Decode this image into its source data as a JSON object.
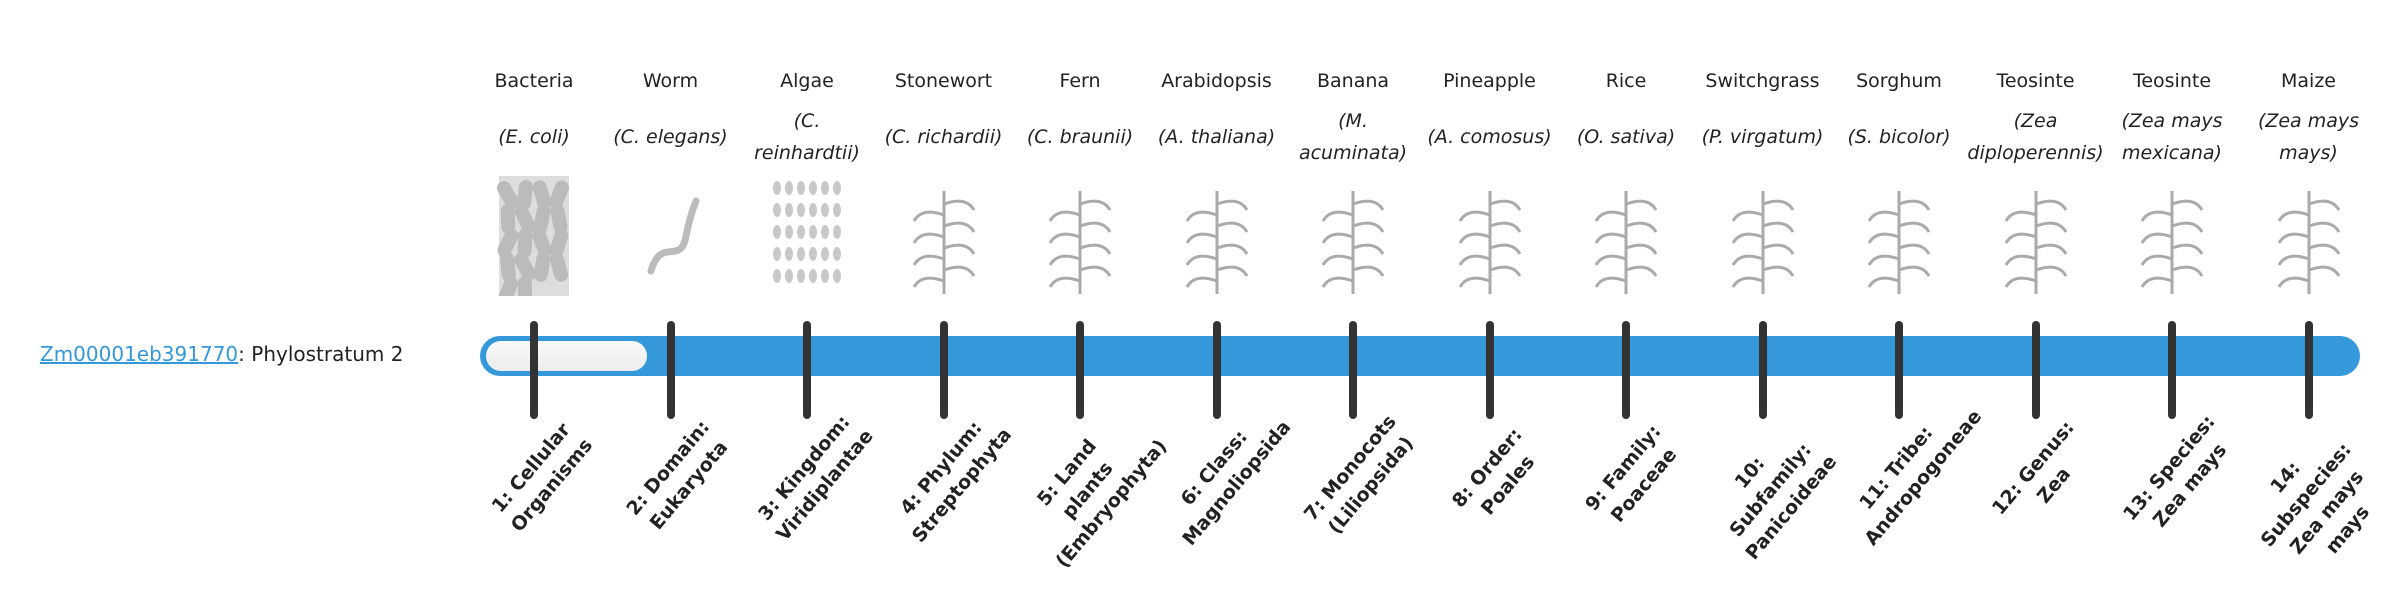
{
  "gene": {
    "id": "Zm00001eb391770",
    "suffix": ": Phylostratum 2"
  },
  "bar": {
    "color": "#3498db",
    "tick_color": "#333333",
    "current_stratum": 2,
    "total_strata": 14
  },
  "organisms": [
    {
      "common": "Bacteria",
      "species": "(E. coli)",
      "icon": "bacteria-icon"
    },
    {
      "common": "Worm",
      "species": "(C. elegans)",
      "icon": "worm-icon"
    },
    {
      "common": "Algae",
      "species": "(C. reinhardtii)",
      "icon": "algae-icon"
    },
    {
      "common": "Stonewort",
      "species": "(C. richardii)",
      "icon": "stonewort-icon"
    },
    {
      "common": "Fern",
      "species": "(C. braunii)",
      "icon": "fern-icon"
    },
    {
      "common": "Arabidopsis",
      "species": "(A. thaliana)",
      "icon": "arabidopsis-icon"
    },
    {
      "common": "Banana",
      "species": "(M. acuminata)",
      "icon": "banana-icon"
    },
    {
      "common": "Pineapple",
      "species": "(A. comosus)",
      "icon": "pineapple-icon"
    },
    {
      "common": "Rice",
      "species": "(O. sativa)",
      "icon": "rice-icon"
    },
    {
      "common": "Switchgrass",
      "species": "(P. virgatum)",
      "icon": "switchgrass-icon"
    },
    {
      "common": "Sorghum",
      "species": "(S. bicolor)",
      "icon": "sorghum-icon"
    },
    {
      "common": "Teosinte",
      "species": "(Zea diploperennis)",
      "icon": "teosinte-icon"
    },
    {
      "common": "Teosinte",
      "species": "(Zea mays mexicana)",
      "icon": "teosinte-mexicana-icon"
    },
    {
      "common": "Maize",
      "species": "(Zea mays mays)",
      "icon": "maize-icon"
    }
  ],
  "strata": [
    "1: Cellular Organisms",
    "2: Domain: Eukaryota",
    "3: Kingdom: Viridiplantae",
    "4: Phylum: Streptophyta",
    "5: Land plants (Embryophyta)",
    "6: Class: Magnoliopsida",
    "7: Monocots (Liliopsida)",
    "8: Order: Poales",
    "9: Family: Poaceae",
    "10: Subfamily: Panicoideae",
    "11: Tribe: Andropogoneae",
    "12: Genus: Zea",
    "13: Species: Zea mays",
    "14: Subspecies: Zea mays mays"
  ]
}
